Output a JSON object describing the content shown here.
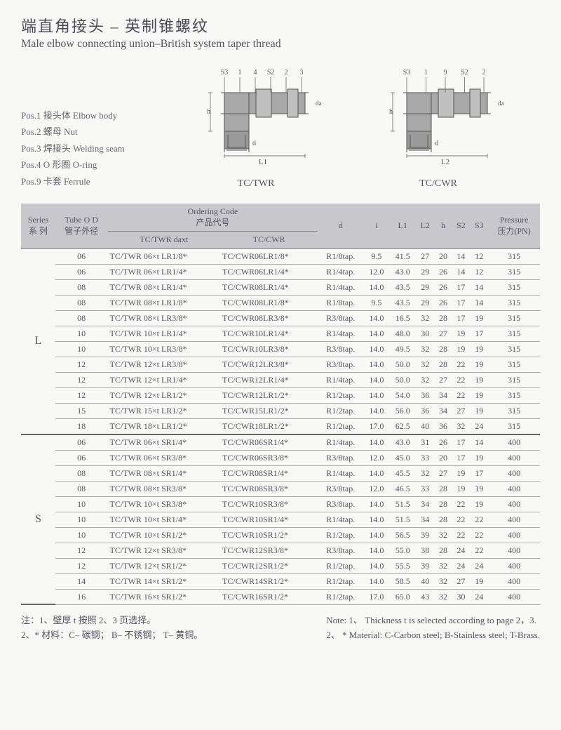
{
  "title": {
    "cn": "端直角接头 – 英制锥螺纹",
    "en": "Male elbow connecting union–British system taper thread"
  },
  "positions": [
    "Pos.1 接头体 Elbow  body",
    "Pos.2 螺母 Nut",
    "Pos.3 焊接头 Welding seam",
    "Pos.4 O 形圈 O-ring",
    "Pos.9 卡套 Ferrule"
  ],
  "diagrams": [
    {
      "label": "TC/TWR",
      "dim": "L1",
      "callouts": [
        "S3",
        "1",
        "4",
        "S2",
        "2",
        "3"
      ]
    },
    {
      "label": "TC/CWR",
      "dim": "L2",
      "callouts": [
        "S3",
        "1",
        "9",
        "S2",
        "2"
      ]
    }
  ],
  "headers": {
    "series": "Series\n系 列",
    "tube": "Tube O D\n管子外径",
    "order": "Ordering Code\n产品代号",
    "twr": "TC/TWR  daxt",
    "cwr": "TC/CWR",
    "d": "d",
    "i": "i",
    "L1": "L1",
    "L2": "L2",
    "h": "h",
    "S2": "S2",
    "S3": "S3",
    "pressure": "Pressure\n压力(PN)"
  },
  "groups": [
    {
      "series": "L",
      "rows": [
        [
          "06",
          "TC/TWR 06×t LR1/8*",
          "TC/CWR06LR1/8*",
          "R1/8tap.",
          "9.5",
          "41.5",
          "27",
          "20",
          "14",
          "12",
          "315"
        ],
        [
          "06",
          "TC/TWR 06×t LR1/4*",
          "TC/CWR06LR1/4*",
          "R1/4tap.",
          "12.0",
          "43.0",
          "29",
          "26",
          "14",
          "12",
          "315"
        ],
        [
          "08",
          "TC/TWR 08×t LR1/4*",
          "TC/CWR08LR1/4*",
          "R1/4tap.",
          "14.0",
          "43.5",
          "29",
          "26",
          "17",
          "14",
          "315"
        ],
        [
          "08",
          "TC/TWR 08×t LR1/8*",
          "TC/CWR08LR1/8*",
          "R1/8tap.",
          "9.5",
          "43.5",
          "29",
          "26",
          "17",
          "14",
          "315"
        ],
        [
          "08",
          "TC/TWR 08×t LR3/8*",
          "TC/CWR08LR3/8*",
          "R3/8tap.",
          "14.0",
          "16.5",
          "32",
          "28",
          "17",
          "19",
          "315"
        ],
        [
          "10",
          "TC/TWR 10×t LR1/4*",
          "TC/CWR10LR1/4*",
          "R1/4tap.",
          "14.0",
          "48.0",
          "30",
          "27",
          "19",
          "17",
          "315"
        ],
        [
          "10",
          "TC/TWR 10×t LR3/8*",
          "TC/CWR10LR3/8*",
          "R3/8tap.",
          "14.0",
          "49.5",
          "32",
          "28",
          "19",
          "19",
          "315"
        ],
        [
          "12",
          "TC/TWR 12×t LR3/8*",
          "TC/CWR12LR3/8*",
          "R3/8tap.",
          "14.0",
          "50.0",
          "32",
          "28",
          "22",
          "19",
          "315"
        ],
        [
          "12",
          "TC/TWR 12×t LR1/4*",
          "TC/CWR12LR1/4*",
          "R1/4tap.",
          "14.0",
          "50.0",
          "32",
          "27",
          "22",
          "19",
          "315"
        ],
        [
          "12",
          "TC/TWR 12×t LR1/2*",
          "TC/CWR12LR1/2*",
          "R1/2tap.",
          "14.0",
          "54.0",
          "36",
          "34",
          "22",
          "19",
          "315"
        ],
        [
          "15",
          "TC/TWR 15×t LR1/2*",
          "TC/CWR15LR1/2*",
          "R1/2tap.",
          "14.0",
          "56.0",
          "36",
          "34",
          "27",
          "19",
          "315"
        ],
        [
          "18",
          "TC/TWR 18×t LR1/2*",
          "TC/CWR18LR1/2*",
          "R1/2tap.",
          "17.0",
          "62.5",
          "40",
          "36",
          "32",
          "24",
          "315"
        ]
      ]
    },
    {
      "series": "S",
      "rows": [
        [
          "06",
          "TC/TWR 06×t SR1/4*",
          "TC/CWR06SR1/4*",
          "R1/4tap.",
          "14.0",
          "43.0",
          "31",
          "26",
          "17",
          "14",
          "400"
        ],
        [
          "06",
          "TC/TWR 06×t SR3/8*",
          "TC/CWR06SR3/8*",
          "R3/8tap.",
          "12.0",
          "45.0",
          "33",
          "20",
          "17",
          "19",
          "400"
        ],
        [
          "08",
          "TC/TWR 08×t SR1/4*",
          "TC/CWR08SR1/4*",
          "R1/4tap.",
          "14.0",
          "45.5",
          "32",
          "27",
          "19",
          "17",
          "400"
        ],
        [
          "08",
          "TC/TWR 08×t SR3/8*",
          "TC/CWR08SR3/8*",
          "R3/8tap.",
          "12.0",
          "46.5",
          "33",
          "28",
          "19",
          "19",
          "400"
        ],
        [
          "10",
          "TC/TWR 10×t SR3/8*",
          "TC/CWR10SR3/8*",
          "R3/8tap.",
          "14.0",
          "51.5",
          "34",
          "28",
          "22",
          "19",
          "400"
        ],
        [
          "10",
          "TC/TWR 10×t SR1/4*",
          "TC/CWR10SR1/4*",
          "R1/4tap.",
          "14.0",
          "51.5",
          "34",
          "28",
          "22",
          "22",
          "400"
        ],
        [
          "10",
          "TC/TWR 10×t SR1/2*",
          "TC/CWR10SR1/2*",
          "R1/2tap.",
          "14.0",
          "56.5",
          "39",
          "32",
          "22",
          "22",
          "400"
        ],
        [
          "12",
          "TC/TWR 12×t SR3/8*",
          "TC/CWR12SR3/8*",
          "R3/8tap.",
          "14.0",
          "55.0",
          "38",
          "28",
          "24",
          "22",
          "400"
        ],
        [
          "12",
          "TC/TWR 12×t SR1/2*",
          "TC/CWR12SR1/2*",
          "R1/2tap.",
          "14.0",
          "55.5",
          "39",
          "32",
          "24",
          "24",
          "400"
        ],
        [
          "14",
          "TC/TWR 14×t SR1/2*",
          "TC/CWR14SR1/2*",
          "R1/2tap.",
          "14.0",
          "58.5",
          "40",
          "32",
          "27",
          "19",
          "400"
        ],
        [
          "16",
          "TC/TWR 16×t SR1/2*",
          "TC/CWR16SR1/2*",
          "R1/2tap.",
          "17.0",
          "65.0",
          "43",
          "32",
          "30",
          "24",
          "400"
        ]
      ]
    }
  ],
  "notes": {
    "cn": [
      "注：1、壁厚 t 按照 2、3 页选择。",
      "2、* 材料：C– 碳钢；   B– 不锈钢；   T– 黄铜。"
    ],
    "en": [
      "Note: 1、 Thickness t is selected according to page 2，3.",
      "2、 * Material: C-Carbon steel; B-Stainless steel; T-Brass."
    ]
  }
}
